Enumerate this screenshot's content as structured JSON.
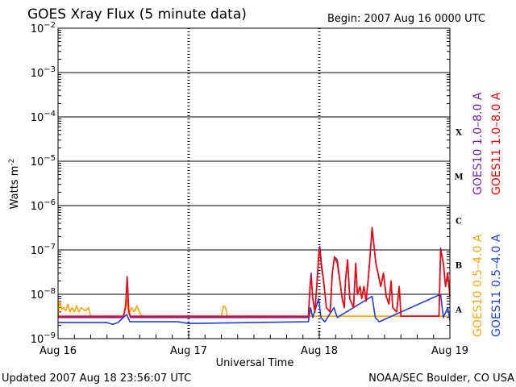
{
  "header": {
    "title": "GOES Xray Flux (5 minute data)",
    "begin": "Begin:  2007 Aug 16 0000 UTC"
  },
  "footer": {
    "updated": "Updated 2007 Aug 18 23:56:07 UTC",
    "source": "NOAA/SEC Boulder, CO USA"
  },
  "chart_data": {
    "type": "line",
    "title": "GOES Xray Flux (5 minute data)",
    "xlabel": "Universal Time",
    "ylabel": "Watts m-2",
    "yscale": "log",
    "ylim": [
      1e-09,
      0.01
    ],
    "xlim": [
      0,
      72
    ],
    "x_unit": "hours since 2007 Aug 16 0000 UTC",
    "x_ticks": [
      {
        "x": 0,
        "label": "Aug 16"
      },
      {
        "x": 24,
        "label": "Aug 17"
      },
      {
        "x": 48,
        "label": "Aug 18"
      },
      {
        "x": 72,
        "label": "Aug 19"
      }
    ],
    "y_ticks": [
      {
        "exp": -2,
        "base": "10",
        "sup": "−2"
      },
      {
        "exp": -3,
        "base": "10",
        "sup": "−3"
      },
      {
        "exp": -4,
        "base": "10",
        "sup": "−4"
      },
      {
        "exp": -5,
        "base": "10",
        "sup": "−5"
      },
      {
        "exp": -6,
        "base": "10",
        "sup": "−6"
      },
      {
        "exp": -7,
        "base": "10",
        "sup": "−7"
      },
      {
        "exp": -8,
        "base": "10",
        "sup": "−8"
      },
      {
        "exp": -9,
        "base": "10",
        "sup": "−9"
      }
    ],
    "flare_classes": [
      {
        "label": "X",
        "exp": -4
      },
      {
        "label": "M",
        "exp": -5
      },
      {
        "label": "C",
        "exp": -6
      },
      {
        "label": "B",
        "exp": -7
      },
      {
        "label": "A",
        "exp": -8
      }
    ],
    "series": [
      {
        "name": "GOES10 1.0–8.0 A",
        "color": "#7a1fb0",
        "points": [
          [
            0,
            3e-09
          ],
          [
            12,
            3e-09
          ],
          [
            12.4,
            5e-09
          ],
          [
            12.7,
            2.5e-08
          ],
          [
            13,
            4e-09
          ],
          [
            13.3,
            3e-09
          ],
          [
            46,
            3e-09
          ],
          [
            46.3,
            1.5e-08
          ],
          [
            46.5,
            3e-08
          ],
          [
            46.8,
            8e-09
          ],
          [
            47.2,
            4e-09
          ],
          [
            47.6,
            2e-08
          ],
          [
            47.9,
            8e-08
          ],
          [
            48.1,
            1.2e-07
          ],
          [
            48.4,
            5e-08
          ],
          [
            48.8,
            2e-08
          ],
          [
            49.3,
            5e-09
          ],
          [
            50,
            4e-09
          ],
          [
            50.4,
            3e-08
          ],
          [
            50.8,
            7e-08
          ],
          [
            51.3,
            6e-08
          ],
          [
            51.8,
            2e-08
          ],
          [
            52.2,
            8e-09
          ],
          [
            52.6,
            5e-09
          ],
          [
            52.8,
            2e-08
          ],
          [
            53.2,
            6e-08
          ],
          [
            53.6,
            8e-09
          ],
          [
            54.3,
            5e-09
          ],
          [
            54.7,
            5e-08
          ],
          [
            55,
            1e-08
          ],
          [
            55.5,
            1.5e-08
          ],
          [
            55.8,
            8e-09
          ],
          [
            56.2,
            1.5e-08
          ],
          [
            56.6,
            7e-09
          ],
          [
            57.1,
            3e-08
          ],
          [
            57.7,
            3e-07
          ],
          [
            58.4,
            5e-08
          ],
          [
            59.3,
            1.5e-08
          ],
          [
            59.8,
            3e-08
          ],
          [
            60.3,
            9e-09
          ],
          [
            60.8,
            6e-09
          ],
          [
            61.2,
            2e-08
          ],
          [
            61.5,
            5e-09
          ],
          [
            62.2,
            4e-09
          ],
          [
            62.7,
            1.5e-08
          ],
          [
            63,
            3.2e-09
          ],
          [
            70,
            3.2e-09
          ],
          [
            70.3,
            1.1e-07
          ],
          [
            70.8,
            5e-08
          ],
          [
            71.2,
            1.5e-08
          ],
          [
            71.6,
            3e-08
          ],
          [
            72,
            9e-09
          ]
        ]
      },
      {
        "name": "GOES11 1.0–8.0 A",
        "color": "#ff0000",
        "points": [
          [
            0,
            3.2e-09
          ],
          [
            12,
            3.2e-09
          ],
          [
            12.4,
            5e-09
          ],
          [
            12.7,
            2.3e-08
          ],
          [
            13,
            4e-09
          ],
          [
            13.3,
            3.2e-09
          ],
          [
            46,
            3.2e-09
          ],
          [
            46.3,
            1.5e-08
          ],
          [
            46.5,
            2.5e-08
          ],
          [
            46.8,
            8e-09
          ],
          [
            47.2,
            4e-09
          ],
          [
            47.6,
            2e-08
          ],
          [
            47.9,
            7e-08
          ],
          [
            48.1,
            1e-07
          ],
          [
            48.4,
            4e-08
          ],
          [
            48.8,
            2e-08
          ],
          [
            49.3,
            5e-09
          ],
          [
            50,
            4e-09
          ],
          [
            50.4,
            3e-08
          ],
          [
            50.8,
            7e-08
          ],
          [
            51.3,
            5e-08
          ],
          [
            51.8,
            2e-08
          ],
          [
            52.2,
            8e-09
          ],
          [
            52.6,
            5e-09
          ],
          [
            52.8,
            2e-08
          ],
          [
            53.2,
            6e-08
          ],
          [
            53.6,
            8e-09
          ],
          [
            54.3,
            5e-09
          ],
          [
            54.7,
            5e-08
          ],
          [
            55,
            1e-08
          ],
          [
            55.5,
            1.5e-08
          ],
          [
            55.8,
            8e-09
          ],
          [
            56.2,
            1.5e-08
          ],
          [
            56.6,
            7e-09
          ],
          [
            57.1,
            3e-08
          ],
          [
            57.7,
            3.2e-07
          ],
          [
            58.4,
            5e-08
          ],
          [
            59.3,
            1.5e-08
          ],
          [
            59.8,
            3e-08
          ],
          [
            60.3,
            9e-09
          ],
          [
            60.8,
            6e-09
          ],
          [
            61.2,
            2e-08
          ],
          [
            61.5,
            5e-09
          ],
          [
            62.2,
            4e-09
          ],
          [
            62.7,
            1.5e-08
          ],
          [
            63,
            3.2e-09
          ],
          [
            70,
            3.2e-09
          ],
          [
            70.3,
            1e-07
          ],
          [
            70.8,
            5e-08
          ],
          [
            71.2,
            1.5e-08
          ],
          [
            71.6,
            3e-08
          ],
          [
            72,
            9e-09
          ]
        ]
      },
      {
        "name": "GOES10 0.5–4.0 A",
        "color": "#ffa500",
        "points": [
          [
            0,
            3.2e-09
          ],
          [
            0.3,
            7e-09
          ],
          [
            0.7,
            4.5e-09
          ],
          [
            1.0,
            5e-09
          ],
          [
            1.4,
            4.2e-09
          ],
          [
            1.8,
            6e-09
          ],
          [
            2.2,
            4e-09
          ],
          [
            2.6,
            5e-09
          ],
          [
            3.0,
            4e-09
          ],
          [
            3.4,
            5.5e-09
          ],
          [
            3.8,
            4e-09
          ],
          [
            4.3,
            5e-09
          ],
          [
            5.0,
            4.2e-09
          ],
          [
            5.6,
            5e-09
          ],
          [
            6.0,
            3.2e-09
          ],
          [
            12,
            3.2e-09
          ],
          [
            12.6,
            8e-09
          ],
          [
            13,
            3.5e-09
          ],
          [
            13.5,
            5e-09
          ],
          [
            14.0,
            4e-09
          ],
          [
            14.5,
            5.5e-09
          ],
          [
            15.0,
            3.8e-09
          ],
          [
            15.5,
            3.2e-09
          ],
          [
            30,
            3.2e-09
          ],
          [
            30.4,
            5.5e-09
          ],
          [
            30.8,
            5e-09
          ],
          [
            31.1,
            3.2e-09
          ],
          [
            72,
            3.2e-09
          ]
        ]
      },
      {
        "name": "GOES11 0.5–4.0 A",
        "color": "#1f3fe0",
        "points": [
          [
            0,
            2.3e-09
          ],
          [
            9,
            2.3e-09
          ],
          [
            10,
            2.1e-09
          ],
          [
            11,
            2.3e-09
          ],
          [
            12.6,
            3.5e-09
          ],
          [
            13.2,
            2.4e-09
          ],
          [
            22,
            2.4e-09
          ],
          [
            24,
            2.2e-09
          ],
          [
            46,
            2.4e-09
          ],
          [
            46.4,
            5e-09
          ],
          [
            46.8,
            3e-09
          ],
          [
            47.9,
            8e-09
          ],
          [
            48.3,
            3e-09
          ],
          [
            49,
            2.4e-09
          ],
          [
            50.7,
            5e-09
          ],
          [
            51.3,
            3e-09
          ],
          [
            57.7,
            9e-09
          ],
          [
            58.3,
            3e-09
          ],
          [
            59,
            2.4e-09
          ],
          [
            70.3,
            1e-08
          ],
          [
            70.8,
            3e-09
          ],
          [
            71.6,
            5e-09
          ],
          [
            72,
            2.6e-09
          ]
        ]
      }
    ]
  }
}
